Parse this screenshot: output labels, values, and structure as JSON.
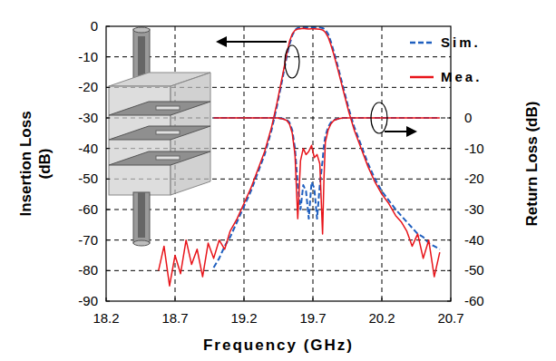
{
  "chart_data": {
    "type": "line",
    "x_label": "Frequency (GHz)",
    "y_label": "Insertion Loss (dB)",
    "y2_label": "Return Loss (dB)",
    "xlim": [
      18.2,
      20.7
    ],
    "xticks": [
      18.2,
      18.7,
      19.2,
      19.7,
      20.2,
      20.7
    ],
    "ylim": [
      -90,
      0
    ],
    "yticks": [
      -90,
      -80,
      -70,
      -60,
      -50,
      -40,
      -30,
      -20,
      -10,
      0
    ],
    "y2lim": [
      -60,
      30
    ],
    "y2ticks": [
      -60,
      -50,
      -40,
      -30,
      -20,
      -10,
      0
    ],
    "grid": true,
    "legend": "upper right",
    "x": [
      18.58,
      18.62,
      18.66,
      18.7,
      18.74,
      18.78,
      18.82,
      18.86,
      18.9,
      18.94,
      18.98,
      19.02,
      19.06,
      19.1,
      19.15,
      19.2,
      19.25,
      19.3,
      19.35,
      19.4,
      19.44,
      19.48,
      19.51,
      19.53,
      19.55,
      19.57,
      19.59,
      19.61,
      19.63,
      19.65,
      19.67,
      19.69,
      19.71,
      19.73,
      19.75,
      19.77,
      19.78,
      19.79,
      19.81,
      19.83,
      19.85,
      19.88,
      19.92,
      19.96,
      20.0,
      20.05,
      20.1,
      20.15,
      20.2,
      20.25,
      20.3,
      20.34,
      20.38,
      20.42,
      20.46,
      20.5,
      20.54,
      20.58,
      20.62
    ],
    "series": [
      {
        "name": "Sim.",
        "color": "#1f5fbf",
        "line_style": "dashed",
        "values": [
          null,
          null,
          null,
          null,
          null,
          null,
          null,
          null,
          null,
          null,
          -79,
          -76,
          -72,
          -69,
          -64,
          -59,
          -54,
          -48,
          -42,
          -34,
          -26,
          -17,
          -10,
          -6,
          -3,
          -1.2,
          -0.5,
          -0.4,
          -0.3,
          -0.3,
          -0.4,
          -0.3,
          -0.3,
          -0.4,
          -0.4,
          -0.6,
          -0.8,
          -1.2,
          -2.5,
          -5,
          -8,
          -13,
          -20,
          -27,
          -33,
          -39,
          -45,
          -50,
          -54,
          -57,
          -60,
          -62,
          -64,
          -66,
          -68,
          -69,
          -71,
          -72,
          -73
        ]
      },
      {
        "name": "Mea.",
        "color": "#e8141a",
        "line_style": "solid",
        "values": [
          -80,
          -72,
          -85,
          -75,
          -81,
          -70,
          -78,
          -73,
          -82,
          -71,
          -76,
          -70,
          -73,
          -67,
          -63,
          -58,
          -53,
          -47,
          -41,
          -33,
          -25,
          -16,
          -9,
          -5,
          -2.5,
          -1.3,
          -0.9,
          -0.8,
          -0.7,
          -0.8,
          -0.9,
          -0.8,
          -0.8,
          -0.9,
          -1.0,
          -1.2,
          -1.5,
          -2,
          -3.5,
          -6,
          -9,
          -14,
          -21,
          -28,
          -34,
          -40,
          -46,
          -51,
          -55,
          -58,
          -62,
          -64,
          -67,
          -72,
          -68,
          -76,
          -70,
          -82,
          -74
        ]
      },
      {
        "color": "#1f5fbf",
        "line_style": "dashed",
        "axis": "y2",
        "values": [
          null,
          null,
          null,
          null,
          null,
          null,
          null,
          null,
          null,
          null,
          0,
          0,
          0,
          0,
          0,
          0,
          0,
          0,
          0,
          0,
          0,
          -0.2,
          -0.6,
          -1.5,
          -4,
          -10,
          -22,
          -30,
          -22,
          -24,
          -33,
          -21,
          -23,
          -33,
          -22,
          -14,
          -9,
          -6,
          -3,
          -1.5,
          -0.7,
          -0.3,
          0,
          0,
          0,
          0,
          0,
          0,
          0,
          0,
          0,
          0,
          0,
          0,
          0,
          0,
          0,
          0,
          0
        ]
      },
      {
        "color": "#e8141a",
        "line_style": "solid",
        "axis": "y2",
        "values": [
          null,
          null,
          null,
          null,
          null,
          null,
          null,
          null,
          null,
          null,
          0,
          0,
          0,
          0,
          0,
          0,
          0,
          0,
          0,
          0,
          0,
          -0.3,
          -0.8,
          -2,
          -5,
          -12,
          -33,
          -14,
          -10,
          -12,
          -11,
          -9,
          -13,
          -12,
          -15,
          -38,
          -20,
          -8,
          -4,
          -2,
          -0.9,
          -0.3,
          0,
          0,
          0,
          0,
          0,
          0,
          0,
          0,
          0,
          0,
          0,
          0,
          0,
          0,
          0,
          0,
          0
        ]
      }
    ]
  }
}
